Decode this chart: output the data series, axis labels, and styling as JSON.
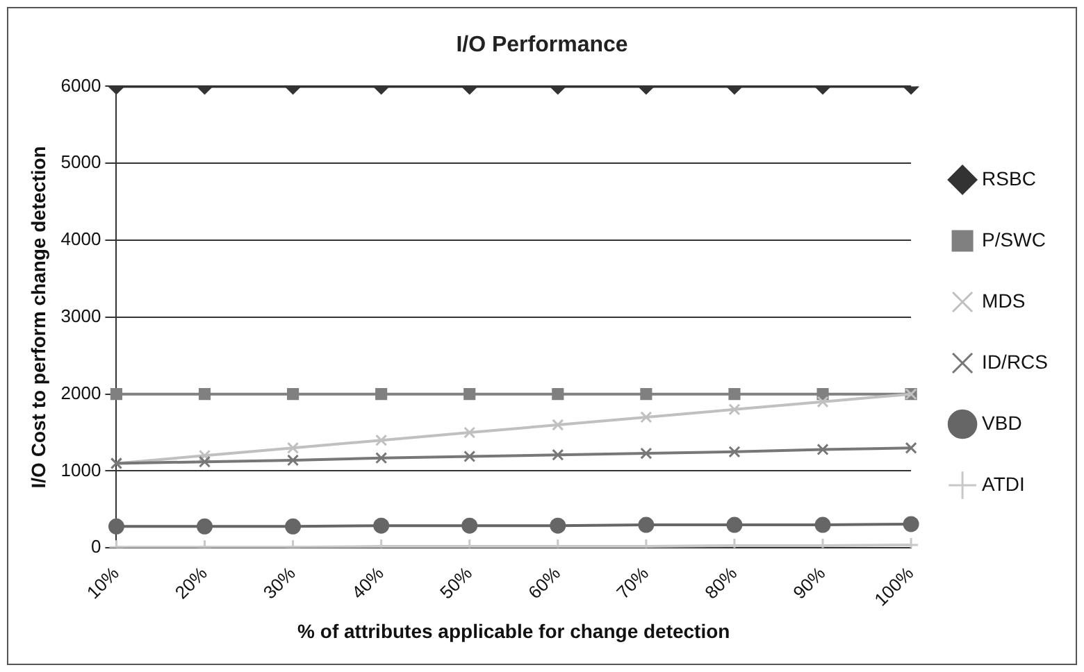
{
  "chart_data": {
    "type": "line",
    "title": "I/O Performance",
    "xlabel": "% of attributes applicable for change detection",
    "ylabel": "I/O Cost to perform change detection",
    "categories": [
      "10%",
      "20%",
      "30%",
      "40%",
      "50%",
      "60%",
      "70%",
      "80%",
      "90%",
      "100%"
    ],
    "ylim": [
      0,
      6000
    ],
    "yticks": [
      0,
      1000,
      2000,
      3000,
      4000,
      5000,
      6000
    ],
    "grid": "y",
    "legend": "right",
    "series": [
      {
        "name": "RSBC",
        "color": "#333333",
        "marker": "diamond",
        "values": [
          6000,
          6000,
          6000,
          6000,
          6000,
          6000,
          6000,
          6000,
          6000,
          6000
        ]
      },
      {
        "name": "P/SWC",
        "color": "#808080",
        "marker": "square",
        "values": [
          2000,
          2000,
          2000,
          2000,
          2000,
          2000,
          2000,
          2000,
          2000,
          2000
        ]
      },
      {
        "name": "MDS",
        "color": "#c0c0c0",
        "marker": "cross",
        "values": [
          1100,
          1200,
          1300,
          1400,
          1500,
          1600,
          1700,
          1800,
          1900,
          2000
        ]
      },
      {
        "name": "ID/RCS",
        "color": "#777777",
        "marker": "cross",
        "values": [
          1100,
          1120,
          1140,
          1170,
          1190,
          1210,
          1230,
          1250,
          1280,
          1300
        ]
      },
      {
        "name": "VBD",
        "color": "#666666",
        "marker": "circle",
        "values": [
          280,
          280,
          280,
          290,
          290,
          290,
          300,
          300,
          300,
          310
        ]
      },
      {
        "name": "ATDI",
        "color": "#c8c8c8",
        "marker": "plus",
        "values": [
          10,
          10,
          10,
          20,
          20,
          20,
          20,
          30,
          30,
          40
        ]
      }
    ]
  }
}
